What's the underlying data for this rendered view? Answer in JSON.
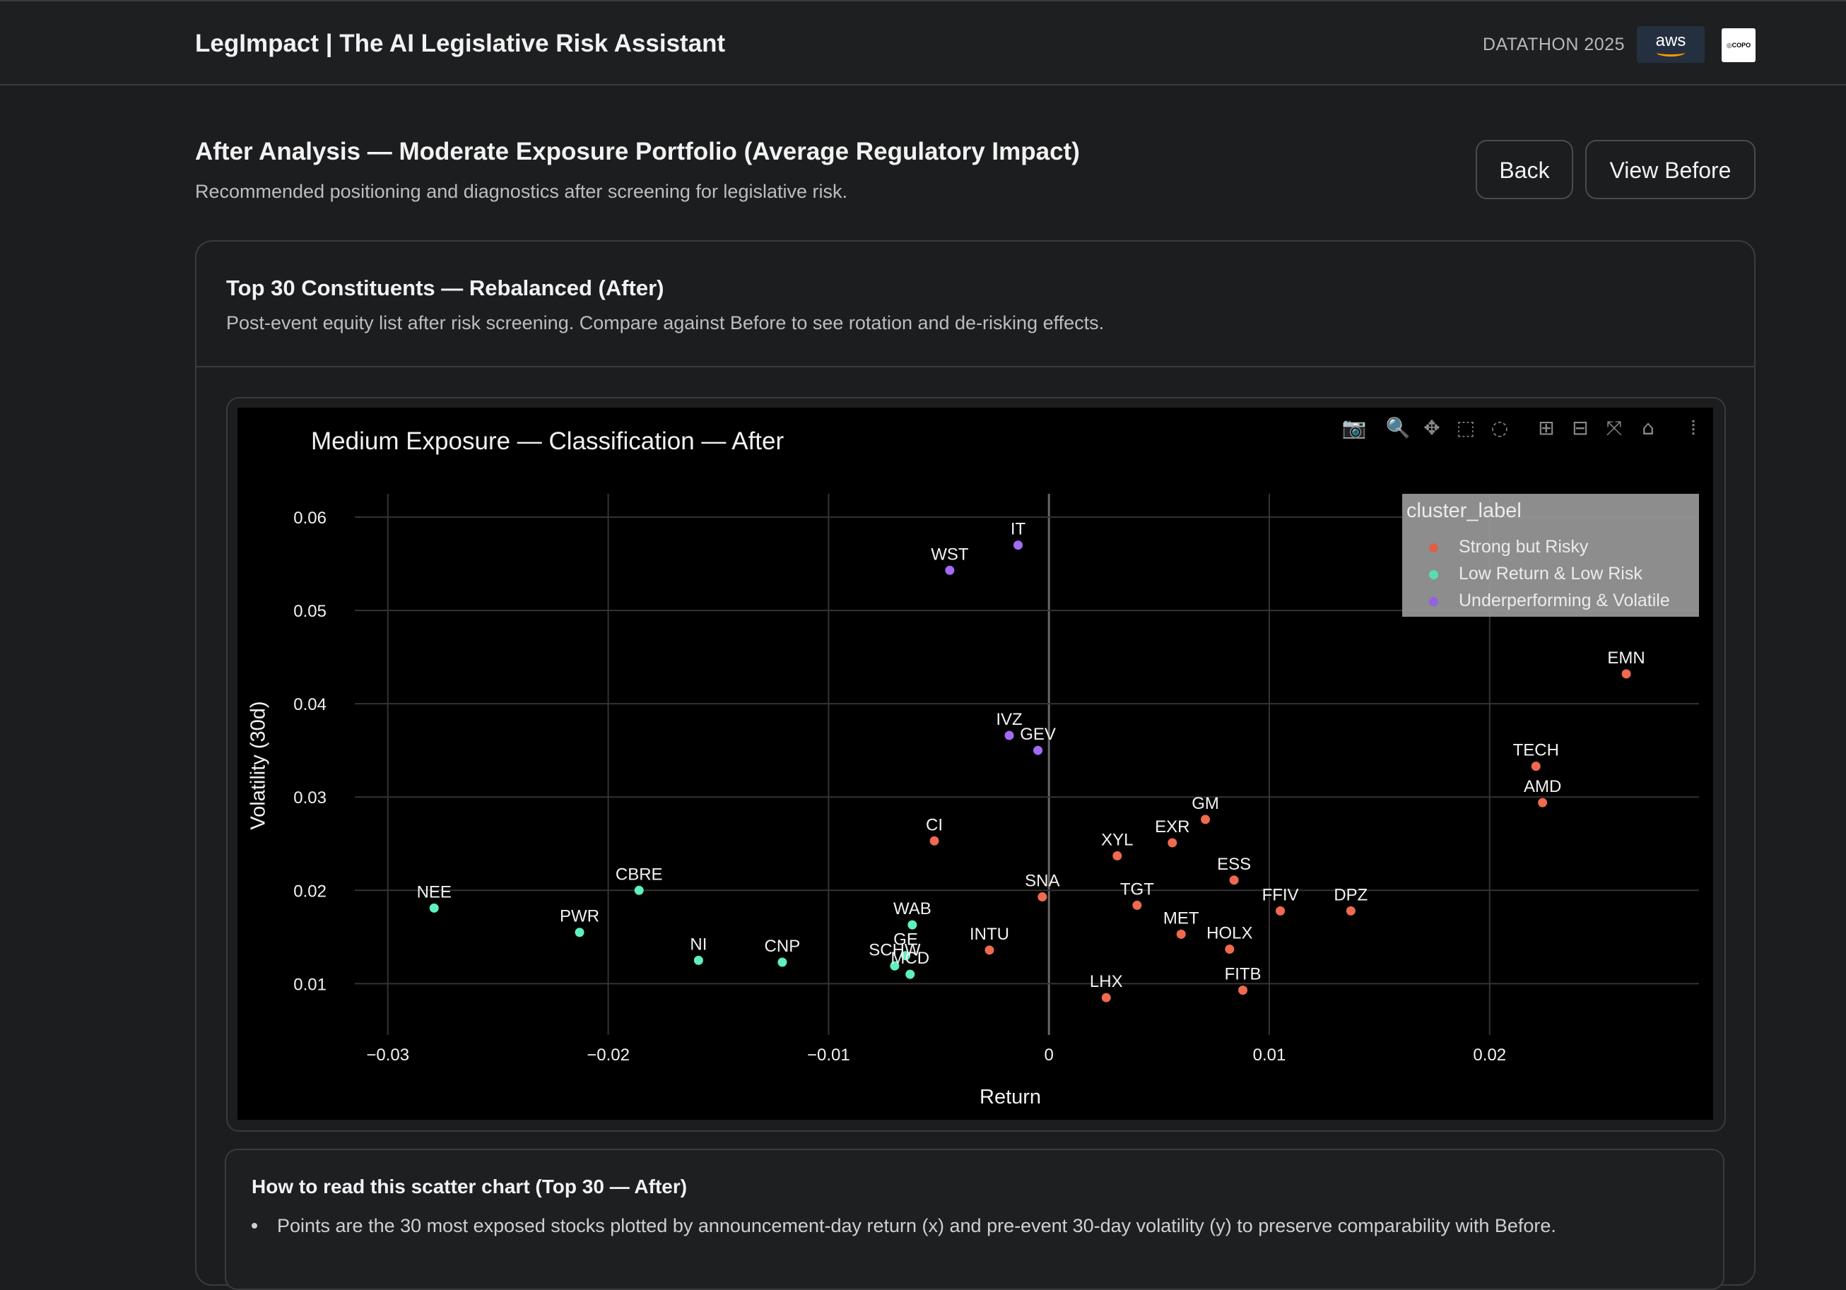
{
  "header": {
    "app_title": "LegImpact | The AI Legislative Risk Assistant",
    "event_label": "DATATHON 2025",
    "aws_logo_text": "aws",
    "partner_logo_text": "COPO"
  },
  "page": {
    "title": "After Analysis — Moderate Exposure Portfolio (Average Regulatory Impact)",
    "subtitle": "Recommended positioning and diagnostics after screening for legislative risk.",
    "back_label": "Back",
    "view_before_label": "View Before"
  },
  "card": {
    "title": "Top 30 Constituents — Rebalanced (After)",
    "description": "Post-event equity list after risk screening. Compare against Before to see rotation and de-risking effects."
  },
  "modebar": {
    "icons": [
      "camera-icon",
      "zoom-icon",
      "pan-icon",
      "box-select-icon",
      "lasso-icon",
      "zoom-in-icon",
      "zoom-out-icon",
      "autoscale-icon",
      "reset-axes-icon",
      "plotly-logo-icon"
    ]
  },
  "help": {
    "title": "How to read this scatter chart (Top 30 — After)",
    "bullet_1": "Points are the 30 most exposed stocks plotted by announcement-day return (x) and pre-event 30-day volatility (y) to preserve comparability with Before."
  },
  "colors": {
    "strong": "#ef6a4f",
    "low": "#5ef0c0",
    "volatile": "#a26bf5",
    "plot_bg": "#000000",
    "page_bg": "#1c1d1f"
  },
  "chart_data": {
    "type": "scatter",
    "title": "Medium Exposure — Classification — After",
    "xlabel": "Return",
    "ylabel": "Volatility (30d)",
    "xlim": [
      -0.0315,
      0.0295
    ],
    "ylim": [
      0.0045,
      0.0625
    ],
    "xticks": [
      -0.03,
      -0.02,
      -0.01,
      0,
      0.01,
      0.02
    ],
    "xtick_labels": [
      "−0.03",
      "−0.02",
      "−0.01",
      "0",
      "0.01",
      "0.02"
    ],
    "yticks": [
      0.01,
      0.02,
      0.03,
      0.04,
      0.05,
      0.06
    ],
    "ytick_labels": [
      "0.01",
      "0.02",
      "0.03",
      "0.04",
      "0.05",
      "0.06"
    ],
    "grid": true,
    "legend": {
      "title": "cluster_label",
      "placement": "top-right"
    },
    "series": [
      {
        "name": "Strong but Risky",
        "color": "#ef6a4f",
        "points": [
          {
            "label": "EMN",
            "x": 0.0262,
            "y": 0.0432
          },
          {
            "label": "TECH",
            "x": 0.0221,
            "y": 0.0333
          },
          {
            "label": "AMD",
            "x": 0.0224,
            "y": 0.0294
          },
          {
            "label": "GM",
            "x": 0.0071,
            "y": 0.0276
          },
          {
            "label": "EXR",
            "x": 0.0056,
            "y": 0.0251
          },
          {
            "label": "XYL",
            "x": 0.0031,
            "y": 0.0237
          },
          {
            "label": "CI",
            "x": -0.0052,
            "y": 0.0253
          },
          {
            "label": "ESS",
            "x": 0.0084,
            "y": 0.0211
          },
          {
            "label": "SNA",
            "x": -0.0003,
            "y": 0.0193
          },
          {
            "label": "TGT",
            "x": 0.004,
            "y": 0.0184
          },
          {
            "label": "FFIV",
            "x": 0.0105,
            "y": 0.0178
          },
          {
            "label": "DPZ",
            "x": 0.0137,
            "y": 0.0178
          },
          {
            "label": "MET",
            "x": 0.006,
            "y": 0.0153
          },
          {
            "label": "HOLX",
            "x": 0.0082,
            "y": 0.0137
          },
          {
            "label": "INTU",
            "x": -0.0027,
            "y": 0.0136
          },
          {
            "label": "FITB",
            "x": 0.0088,
            "y": 0.0093
          },
          {
            "label": "LHX",
            "x": 0.0026,
            "y": 0.0085
          }
        ]
      },
      {
        "name": "Low Return & Low Risk",
        "color": "#5ef0c0",
        "points": [
          {
            "label": "NEE",
            "x": -0.0279,
            "y": 0.0181
          },
          {
            "label": "CBRE",
            "x": -0.0186,
            "y": 0.02
          },
          {
            "label": "PWR",
            "x": -0.0213,
            "y": 0.0155
          },
          {
            "label": "NI",
            "x": -0.0159,
            "y": 0.0125
          },
          {
            "label": "CNP",
            "x": -0.0121,
            "y": 0.0123
          },
          {
            "label": "WAB",
            "x": -0.0062,
            "y": 0.0163
          },
          {
            "label": "GE",
            "x": -0.0065,
            "y": 0.013
          },
          {
            "label": "SCHW",
            "x": -0.007,
            "y": 0.0119
          },
          {
            "label": "MCD",
            "x": -0.0063,
            "y": 0.011
          }
        ]
      },
      {
        "name": "Underperforming & Volatile",
        "color": "#a26bf5",
        "points": [
          {
            "label": "IT",
            "x": -0.0014,
            "y": 0.057
          },
          {
            "label": "WST",
            "x": -0.0045,
            "y": 0.0543
          },
          {
            "label": "IVZ",
            "x": -0.0018,
            "y": 0.0366
          },
          {
            "label": "GEV",
            "x": -0.0005,
            "y": 0.035
          }
        ]
      }
    ]
  }
}
